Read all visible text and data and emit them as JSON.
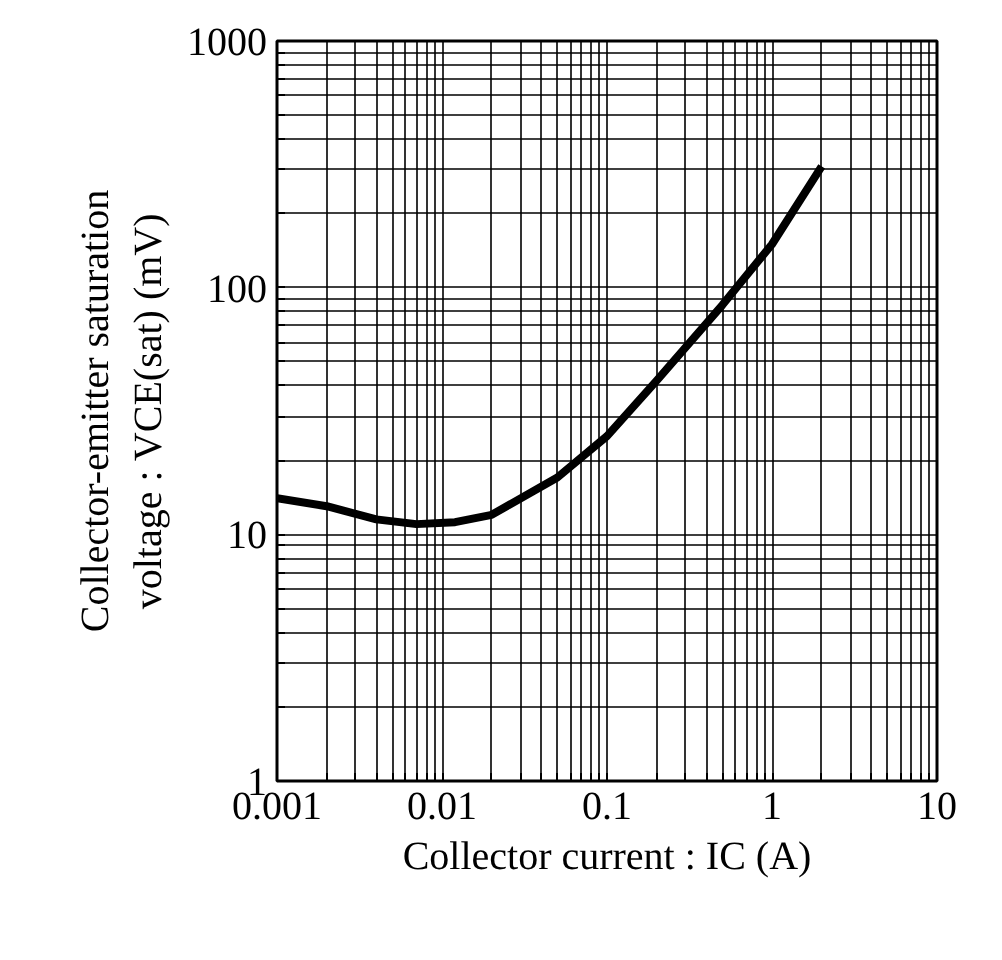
{
  "chart_data": {
    "type": "line",
    "xlabel": "Collector current : IC (A)",
    "ylabel": "Collector-emitter saturation\nvoltage : VCE(sat) (mV)",
    "log": "xy",
    "grid": true,
    "line_style": "solid",
    "marker": "none",
    "x": [
      0.001,
      0.002,
      0.004,
      0.007,
      0.012,
      0.02,
      0.05,
      0.1,
      0.2,
      0.5,
      1,
      2
    ],
    "series": [
      {
        "color": "#000000",
        "values": [
          14,
          13,
          11.5,
          11,
          11.2,
          12,
          17,
          25,
          42,
          85,
          150,
          310
        ]
      }
    ],
    "xlim": [
      0.001,
      10
    ],
    "ylim": [
      1,
      1000
    ],
    "xticks": [
      0.001,
      {
        "value": 0.002,
        "label": null
      },
      {
        "value": 0.003,
        "label": null
      },
      {
        "value": 0.004,
        "label": null
      },
      {
        "value": 0.005,
        "label": null
      },
      {
        "value": 0.006,
        "label": null
      },
      {
        "value": 0.007,
        "label": null
      },
      {
        "value": 0.008,
        "label": null
      },
      {
        "value": 0.009,
        "label": null
      },
      0.01,
      {
        "value": 0.02,
        "label": null
      },
      {
        "value": 0.03,
        "label": null
      },
      {
        "value": 0.04,
        "label": null
      },
      {
        "value": 0.05,
        "label": null
      },
      {
        "value": 0.06,
        "label": null
      },
      {
        "value": 0.07,
        "label": null
      },
      {
        "value": 0.08,
        "label": null
      },
      {
        "value": 0.09,
        "label": null
      },
      0.1,
      {
        "value": 0.2,
        "label": null
      },
      {
        "value": 0.3,
        "label": null
      },
      {
        "value": 0.4,
        "label": null
      },
      {
        "value": 0.5,
        "label": null
      },
      {
        "value": 0.6,
        "label": null
      },
      {
        "value": 0.7,
        "label": null
      },
      {
        "value": 0.8,
        "label": null
      },
      {
        "value": 0.9,
        "label": null
      },
      1,
      {
        "value": 2,
        "label": null
      },
      {
        "value": 3,
        "label": null
      },
      {
        "value": 4,
        "label": null
      },
      {
        "value": 5,
        "label": null
      },
      {
        "value": 6,
        "label": null
      },
      {
        "value": 7,
        "label": null
      },
      {
        "value": 8,
        "label": null
      },
      {
        "value": 9,
        "label": null
      },
      10
    ],
    "yticks": [
      1,
      {
        "value": 2,
        "label": null
      },
      {
        "value": 3,
        "label": null
      },
      {
        "value": 4,
        "label": null
      },
      {
        "value": 5,
        "label": null
      },
      {
        "value": 6,
        "label": null
      },
      {
        "value": 7,
        "label": null
      },
      {
        "value": 8,
        "label": null
      },
      {
        "value": 9,
        "label": null
      },
      10,
      {
        "value": 20,
        "label": null
      },
      {
        "value": 30,
        "label": null
      },
      {
        "value": 40,
        "label": null
      },
      {
        "value": 50,
        "label": null
      },
      {
        "value": 60,
        "label": null
      },
      {
        "value": 70,
        "label": null
      },
      {
        "value": 80,
        "label": null
      },
      {
        "value": 90,
        "label": null
      },
      100,
      {
        "value": 200,
        "label": null
      },
      {
        "value": 300,
        "label": null
      },
      {
        "value": 400,
        "label": null
      },
      {
        "value": 500,
        "label": null
      },
      {
        "value": 600,
        "label": null
      },
      {
        "value": 700,
        "label": null
      },
      {
        "value": 800,
        "label": null
      },
      {
        "value": 900,
        "label": null
      },
      1000
    ]
  }
}
